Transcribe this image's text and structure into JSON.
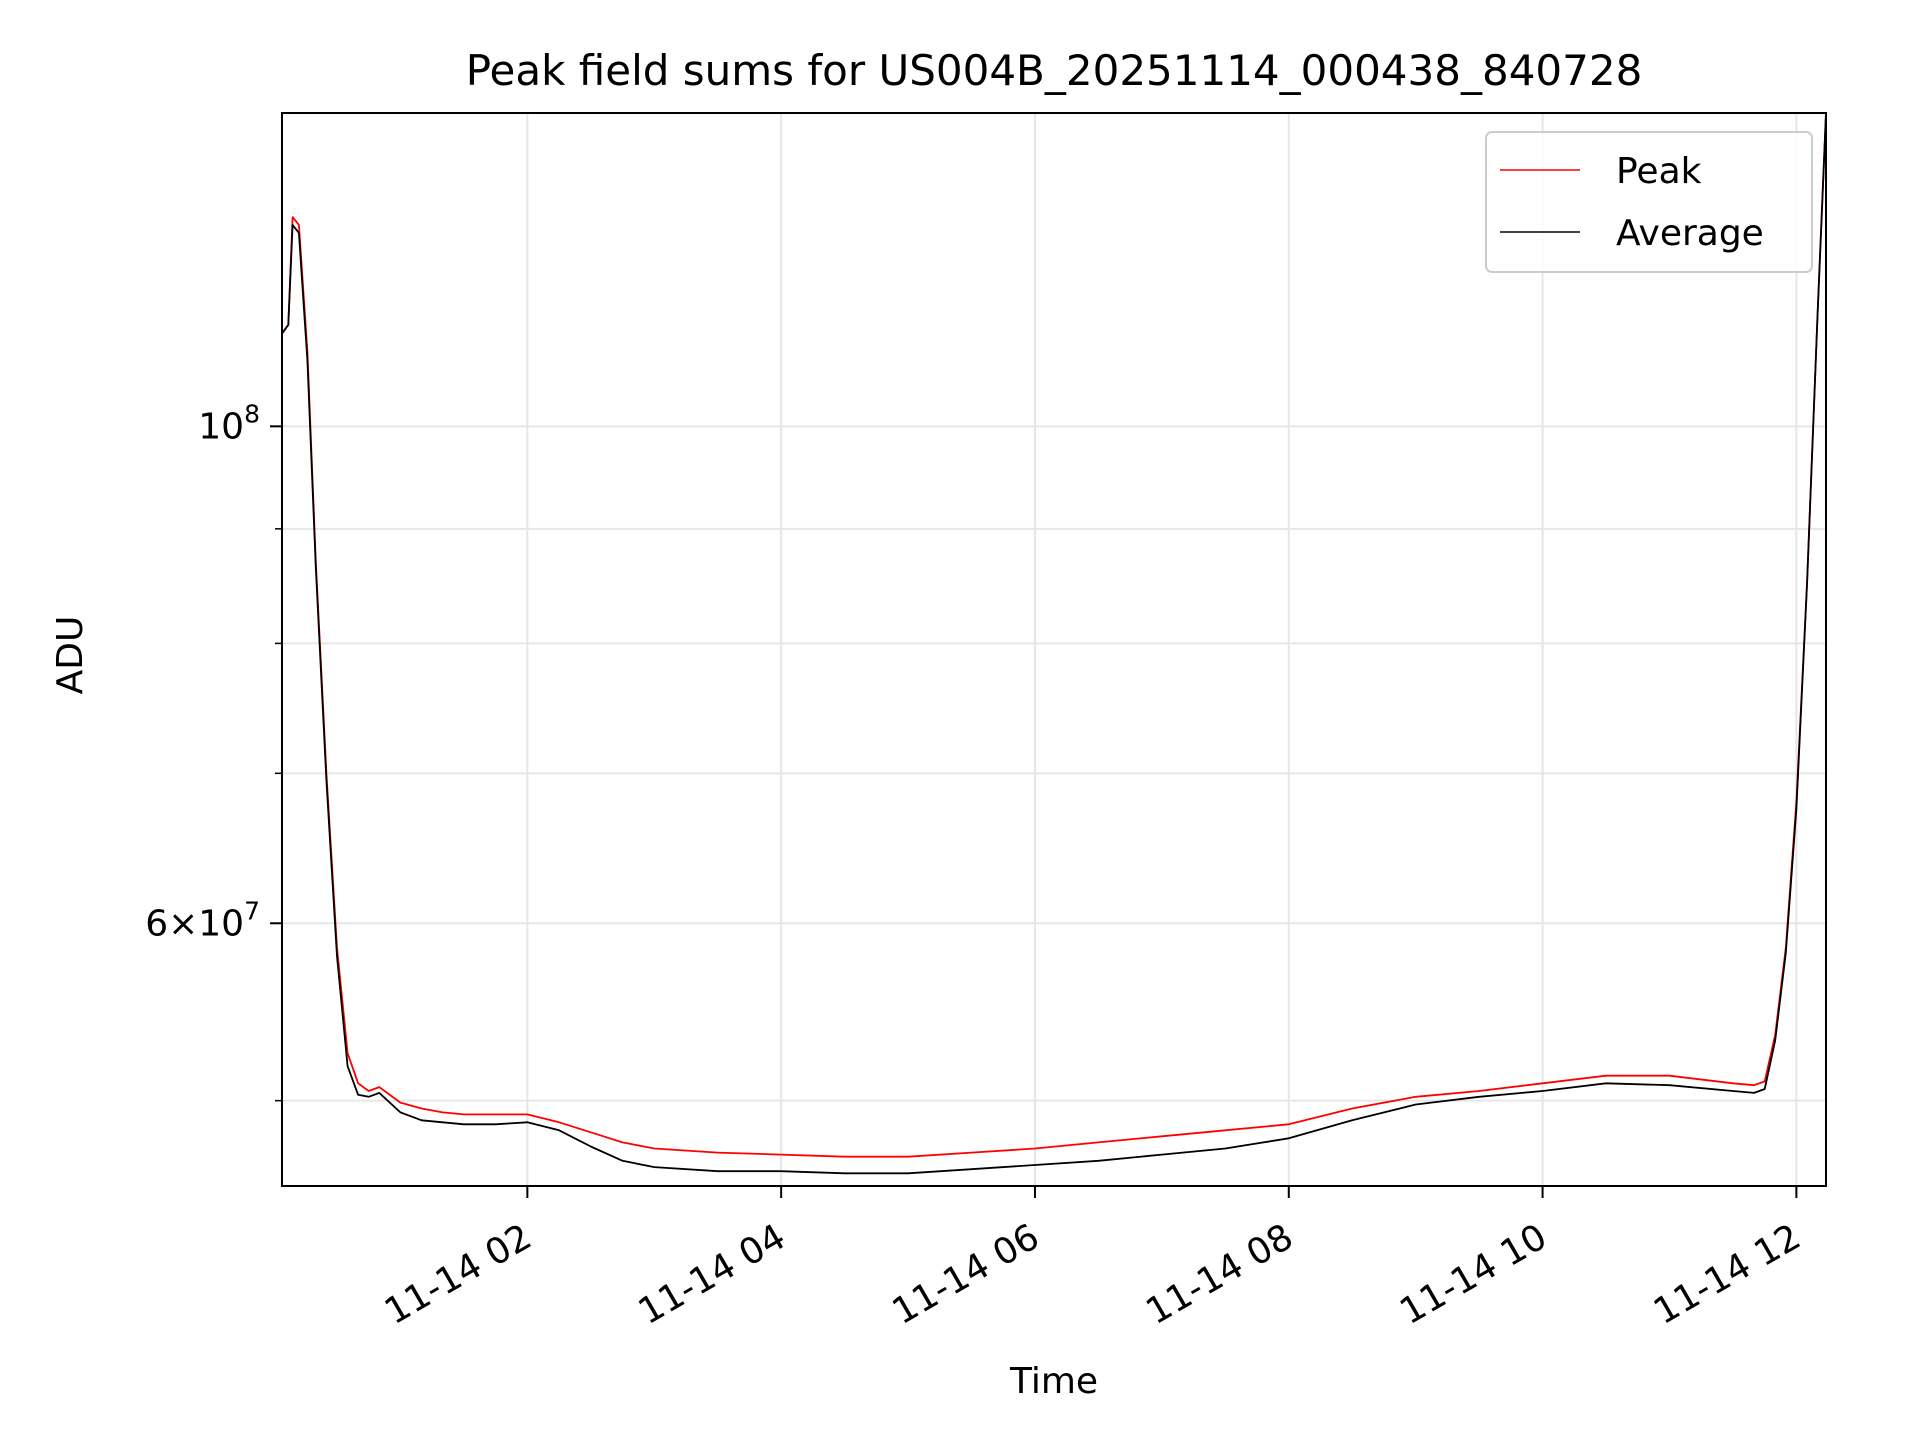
{
  "chart_data": {
    "type": "line",
    "title": "Peak field sums for US004B_20251114_000438_840728",
    "xlabel": "Time",
    "ylabel": "ADU",
    "x_scale": "time",
    "y_scale": "log",
    "xlim": [
      "2025-11-14 00:04",
      "2025-11-14 12:14"
    ],
    "ylim": [
      45800000,
      138000000
    ],
    "x_ticks": [
      {
        "time": "2025-11-14 02:00",
        "label": "11-14 02"
      },
      {
        "time": "2025-11-14 04:00",
        "label": "11-14 04"
      },
      {
        "time": "2025-11-14 06:00",
        "label": "11-14 06"
      },
      {
        "time": "2025-11-14 08:00",
        "label": "11-14 08"
      },
      {
        "time": "2025-11-14 10:00",
        "label": "11-14 10"
      },
      {
        "time": "2025-11-14 12:00",
        "label": "11-14 12"
      }
    ],
    "y_major_ticks": [
      {
        "value": 60000000,
        "mantissa": "6",
        "times": "×",
        "base": "10",
        "exponent": "7"
      },
      {
        "value": 100000000,
        "mantissa": "",
        "times": "",
        "base": "10",
        "exponent": "8"
      }
    ],
    "y_minor_ticks": [
      50000000,
      70000000,
      80000000,
      90000000
    ],
    "grid": true,
    "legend": {
      "position": "top-right"
    },
    "series": [
      {
        "name": "Peak",
        "color": "#ff0000",
        "x": [
          "2025-11-14 00:04",
          "2025-11-14 00:07",
          "2025-11-14 00:09",
          "2025-11-14 00:12",
          "2025-11-14 00:16",
          "2025-11-14 00:20",
          "2025-11-14 00:25",
          "2025-11-14 00:30",
          "2025-11-14 00:35",
          "2025-11-14 00:40",
          "2025-11-14 00:45",
          "2025-11-14 00:50",
          "2025-11-14 01:00",
          "2025-11-14 01:10",
          "2025-11-14 01:20",
          "2025-11-14 01:30",
          "2025-11-14 01:45",
          "2025-11-14 02:00",
          "2025-11-14 02:15",
          "2025-11-14 02:30",
          "2025-11-14 02:45",
          "2025-11-14 03:00",
          "2025-11-14 03:30",
          "2025-11-14 04:00",
          "2025-11-14 04:30",
          "2025-11-14 05:00",
          "2025-11-14 05:30",
          "2025-11-14 06:00",
          "2025-11-14 06:30",
          "2025-11-14 07:00",
          "2025-11-14 07:30",
          "2025-11-14 08:00",
          "2025-11-14 08:30",
          "2025-11-14 09:00",
          "2025-11-14 09:30",
          "2025-11-14 10:00",
          "2025-11-14 10:30",
          "2025-11-14 11:00",
          "2025-11-14 11:30",
          "2025-11-14 11:40",
          "2025-11-14 11:45",
          "2025-11-14 11:50",
          "2025-11-14 11:55",
          "2025-11-14 12:00",
          "2025-11-14 12:05",
          "2025-11-14 12:10",
          "2025-11-14 12:14"
        ],
        "values": [
          110000000,
          111000000,
          124000000,
          123000000,
          108000000,
          87000000,
          70000000,
          58500000,
          52500000,
          50900000,
          50500000,
          50700000,
          49900000,
          49600000,
          49400000,
          49300000,
          49300000,
          49300000,
          48900000,
          48400000,
          47900000,
          47600000,
          47400000,
          47300000,
          47200000,
          47200000,
          47400000,
          47600000,
          47900000,
          48200000,
          48500000,
          48800000,
          49600000,
          50200000,
          50500000,
          50900000,
          51300000,
          51300000,
          50900000,
          50800000,
          51000000,
          53500000,
          58500000,
          68000000,
          85000000,
          112000000,
          138000000
        ]
      },
      {
        "name": "Average",
        "color": "#000000",
        "x": [
          "2025-11-14 00:04",
          "2025-11-14 00:07",
          "2025-11-14 00:09",
          "2025-11-14 00:12",
          "2025-11-14 00:16",
          "2025-11-14 00:20",
          "2025-11-14 00:25",
          "2025-11-14 00:30",
          "2025-11-14 00:35",
          "2025-11-14 00:40",
          "2025-11-14 00:45",
          "2025-11-14 00:50",
          "2025-11-14 01:00",
          "2025-11-14 01:10",
          "2025-11-14 01:20",
          "2025-11-14 01:30",
          "2025-11-14 01:45",
          "2025-11-14 02:00",
          "2025-11-14 02:15",
          "2025-11-14 02:30",
          "2025-11-14 02:45",
          "2025-11-14 03:00",
          "2025-11-14 03:30",
          "2025-11-14 04:00",
          "2025-11-14 04:30",
          "2025-11-14 05:00",
          "2025-11-14 05:30",
          "2025-11-14 06:00",
          "2025-11-14 06:30",
          "2025-11-14 07:00",
          "2025-11-14 07:30",
          "2025-11-14 08:00",
          "2025-11-14 08:30",
          "2025-11-14 09:00",
          "2025-11-14 09:30",
          "2025-11-14 10:00",
          "2025-11-14 10:30",
          "2025-11-14 11:00",
          "2025-11-14 11:30",
          "2025-11-14 11:40",
          "2025-11-14 11:45",
          "2025-11-14 11:50",
          "2025-11-14 11:55",
          "2025-11-14 12:00",
          "2025-11-14 12:05",
          "2025-11-14 12:10",
          "2025-11-14 12:14"
        ],
        "values": [
          110000000,
          111000000,
          123000000,
          122000000,
          107000000,
          86500000,
          69500000,
          58000000,
          51800000,
          50300000,
          50200000,
          50400000,
          49400000,
          49000000,
          48900000,
          48800000,
          48800000,
          48900000,
          48500000,
          47700000,
          47000000,
          46700000,
          46500000,
          46500000,
          46400000,
          46400000,
          46600000,
          46800000,
          47000000,
          47300000,
          47600000,
          48100000,
          49000000,
          49800000,
          50200000,
          50500000,
          50900000,
          50800000,
          50500000,
          50400000,
          50600000,
          53200000,
          58200000,
          67500000,
          85000000,
          112000000,
          138000000
        ]
      }
    ]
  }
}
